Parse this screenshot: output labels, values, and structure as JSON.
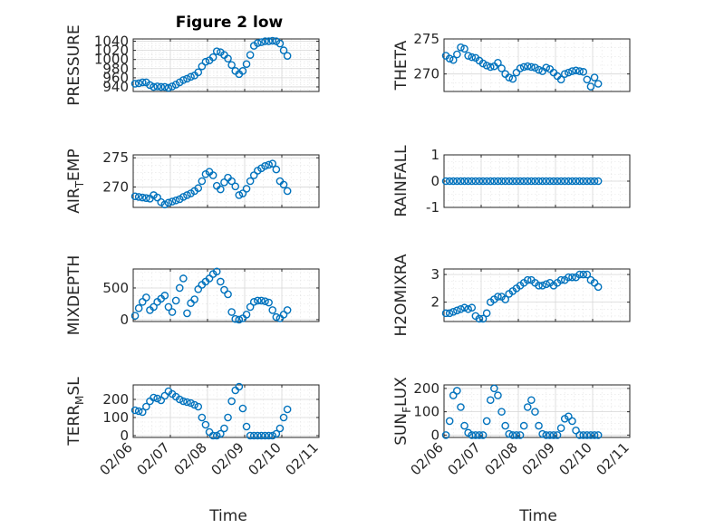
{
  "figure": {
    "title": "Figure 2 low",
    "xlabel_left": "Time",
    "xlabel_right": "Time",
    "x_ticks": [
      "02/06",
      "02/07",
      "02/08",
      "02/09",
      "02/10",
      "02/11"
    ],
    "marker_color": "#0072bd"
  },
  "chart_data": [
    {
      "type": "scatter",
      "name": "pressure",
      "ylabel": "PRESSURE",
      "title": "Figure 2 low",
      "xlim": [
        0,
        5
      ],
      "ylim": [
        930,
        1045
      ],
      "yticks": [
        940,
        960,
        980,
        1000,
        1020,
        1040
      ],
      "x": [
        0.05,
        0.15,
        0.25,
        0.35,
        0.45,
        0.55,
        0.65,
        0.75,
        0.85,
        0.95,
        1.05,
        1.15,
        1.25,
        1.35,
        1.45,
        1.55,
        1.65,
        1.75,
        1.85,
        1.95,
        2.05,
        2.15,
        2.25,
        2.35,
        2.45,
        2.55,
        2.65,
        2.75,
        2.85,
        2.95,
        3.05,
        3.15,
        3.25,
        3.35,
        3.45,
        3.55,
        3.65,
        3.75,
        3.85,
        3.95,
        4.05,
        4.15
      ],
      "y": [
        947,
        948,
        950,
        950,
        944,
        940,
        941,
        940,
        940,
        938,
        941,
        945,
        950,
        955,
        958,
        962,
        965,
        972,
        985,
        995,
        998,
        1005,
        1018,
        1016,
        1010,
        1002,
        988,
        975,
        968,
        975,
        990,
        1010,
        1030,
        1036,
        1038,
        1040,
        1040,
        1041,
        1040,
        1035,
        1020,
        1008
      ]
    },
    {
      "type": "scatter",
      "name": "theta",
      "ylabel": "THETA",
      "xlim": [
        0,
        5
      ],
      "ylim": [
        267.5,
        275
      ],
      "yticks": [
        270,
        275
      ],
      "x": [
        0.05,
        0.15,
        0.25,
        0.35,
        0.45,
        0.55,
        0.65,
        0.75,
        0.85,
        0.95,
        1.05,
        1.15,
        1.25,
        1.35,
        1.45,
        1.55,
        1.65,
        1.75,
        1.85,
        1.95,
        2.05,
        2.15,
        2.25,
        2.35,
        2.45,
        2.55,
        2.65,
        2.75,
        2.85,
        2.95,
        3.05,
        3.15,
        3.25,
        3.35,
        3.45,
        3.55,
        3.65,
        3.75,
        3.85,
        3.95,
        4.05,
        4.15
      ],
      "y": [
        272.6,
        272.2,
        272.0,
        272.8,
        273.8,
        273.6,
        272.6,
        272.4,
        272.3,
        271.9,
        271.5,
        271.2,
        271.0,
        271.1,
        271.6,
        270.8,
        270.0,
        269.5,
        269.3,
        270.2,
        270.8,
        271.0,
        271.1,
        271.0,
        270.9,
        270.6,
        270.4,
        270.9,
        270.7,
        270.2,
        269.7,
        269.2,
        270.0,
        270.2,
        270.4,
        270.5,
        270.4,
        270.3,
        269.2,
        268.2,
        269.5,
        268.6
      ]
    },
    {
      "type": "scatter",
      "name": "air_temp",
      "ylabel": "AIR_TEMP",
      "xlim": [
        0,
        5
      ],
      "ylim": [
        266.5,
        275.5
      ],
      "yticks": [
        270,
        275
      ],
      "x": [
        0.05,
        0.15,
        0.25,
        0.35,
        0.45,
        0.55,
        0.65,
        0.75,
        0.85,
        0.95,
        1.05,
        1.15,
        1.25,
        1.35,
        1.45,
        1.55,
        1.65,
        1.75,
        1.85,
        1.95,
        2.05,
        2.15,
        2.25,
        2.35,
        2.45,
        2.55,
        2.65,
        2.75,
        2.85,
        2.95,
        3.05,
        3.15,
        3.25,
        3.35,
        3.45,
        3.55,
        3.65,
        3.75,
        3.85,
        3.95,
        4.05,
        4.15
      ],
      "y": [
        268.4,
        268.3,
        268.2,
        268.1,
        268.0,
        268.6,
        268.2,
        267.4,
        267.0,
        267.3,
        267.5,
        267.7,
        267.9,
        268.3,
        268.6,
        268.9,
        269.3,
        269.8,
        271.0,
        272.2,
        272.6,
        272.0,
        270.2,
        269.6,
        270.8,
        271.6,
        271.0,
        270.1,
        268.6,
        268.9,
        269.7,
        271.0,
        272.0,
        272.8,
        273.2,
        273.6,
        273.8,
        274.0,
        273.0,
        271.0,
        270.4,
        269.3
      ]
    },
    {
      "type": "scatter",
      "name": "rainfall",
      "ylabel": "RAINFALL",
      "xlim": [
        0,
        5
      ],
      "ylim": [
        -1,
        1
      ],
      "yticks": [
        -1,
        0,
        1
      ],
      "x": [
        0.05,
        0.15,
        0.25,
        0.35,
        0.45,
        0.55,
        0.65,
        0.75,
        0.85,
        0.95,
        1.05,
        1.15,
        1.25,
        1.35,
        1.45,
        1.55,
        1.65,
        1.75,
        1.85,
        1.95,
        2.05,
        2.15,
        2.25,
        2.35,
        2.45,
        2.55,
        2.65,
        2.75,
        2.85,
        2.95,
        3.05,
        3.15,
        3.25,
        3.35,
        3.45,
        3.55,
        3.65,
        3.75,
        3.85,
        3.95,
        4.05,
        4.15
      ],
      "y": [
        0,
        0,
        0,
        0,
        0,
        0,
        0,
        0,
        0,
        0,
        0,
        0,
        0,
        0,
        0,
        0,
        0,
        0,
        0,
        0,
        0,
        0,
        0,
        0,
        0,
        0,
        0,
        0,
        0,
        0,
        0,
        0,
        0,
        0,
        0,
        0,
        0,
        0,
        0,
        0,
        0,
        0
      ]
    },
    {
      "type": "scatter",
      "name": "mixdepth",
      "ylabel": "MIXDEPTH",
      "xlim": [
        0,
        5
      ],
      "ylim": [
        -30,
        800
      ],
      "yticks": [
        0,
        500
      ],
      "x": [
        0.05,
        0.15,
        0.25,
        0.35,
        0.45,
        0.55,
        0.65,
        0.75,
        0.85,
        0.95,
        1.05,
        1.15,
        1.25,
        1.35,
        1.45,
        1.55,
        1.65,
        1.75,
        1.85,
        1.95,
        2.05,
        2.15,
        2.25,
        2.35,
        2.45,
        2.55,
        2.65,
        2.75,
        2.85,
        2.95,
        3.05,
        3.15,
        3.25,
        3.35,
        3.45,
        3.55,
        3.65,
        3.75,
        3.85,
        3.95,
        4.05,
        4.15
      ],
      "y": [
        60,
        180,
        280,
        350,
        150,
        200,
        280,
        330,
        380,
        200,
        120,
        300,
        500,
        650,
        100,
        260,
        320,
        480,
        550,
        600,
        650,
        720,
        760,
        600,
        470,
        400,
        120,
        10,
        0,
        20,
        80,
        200,
        280,
        300,
        300,
        290,
        270,
        150,
        40,
        20,
        80,
        150
      ]
    },
    {
      "type": "scatter",
      "name": "h2omixra",
      "ylabel": "H2OMIXRA",
      "xlim": [
        0,
        5
      ],
      "ylim": [
        1.3,
        3.2
      ],
      "yticks": [
        2,
        3
      ],
      "x": [
        0.05,
        0.15,
        0.25,
        0.35,
        0.45,
        0.55,
        0.65,
        0.75,
        0.85,
        0.95,
        1.05,
        1.15,
        1.25,
        1.35,
        1.45,
        1.55,
        1.65,
        1.75,
        1.85,
        1.95,
        2.05,
        2.15,
        2.25,
        2.35,
        2.45,
        2.55,
        2.65,
        2.75,
        2.85,
        2.95,
        3.05,
        3.15,
        3.25,
        3.35,
        3.45,
        3.55,
        3.65,
        3.75,
        3.85,
        3.95,
        4.05,
        4.15
      ],
      "y": [
        1.6,
        1.6,
        1.65,
        1.7,
        1.75,
        1.8,
        1.75,
        1.8,
        1.5,
        1.4,
        1.4,
        1.6,
        2.0,
        2.1,
        2.2,
        2.2,
        2.1,
        2.3,
        2.4,
        2.5,
        2.6,
        2.7,
        2.8,
        2.8,
        2.7,
        2.6,
        2.6,
        2.65,
        2.7,
        2.6,
        2.7,
        2.8,
        2.8,
        2.9,
        2.9,
        2.9,
        3.0,
        3.0,
        3.0,
        2.8,
        2.7,
        2.55
      ]
    },
    {
      "type": "scatter",
      "name": "terr_msl",
      "ylabel": "TERR_MSL",
      "xlim": [
        0,
        5
      ],
      "ylim": [
        -10,
        280
      ],
      "yticks": [
        0,
        100,
        200
      ],
      "x": [
        0.05,
        0.15,
        0.25,
        0.35,
        0.45,
        0.55,
        0.65,
        0.75,
        0.85,
        0.95,
        1.05,
        1.15,
        1.25,
        1.35,
        1.45,
        1.55,
        1.65,
        1.75,
        1.85,
        1.95,
        2.05,
        2.15,
        2.25,
        2.35,
        2.45,
        2.55,
        2.65,
        2.75,
        2.85,
        2.95,
        3.05,
        3.15,
        3.25,
        3.35,
        3.45,
        3.55,
        3.65,
        3.75,
        3.85,
        3.95,
        4.05,
        4.15
      ],
      "y": [
        140,
        135,
        130,
        160,
        190,
        210,
        205,
        195,
        220,
        245,
        230,
        215,
        200,
        190,
        185,
        180,
        170,
        160,
        100,
        60,
        20,
        0,
        0,
        10,
        40,
        100,
        190,
        250,
        270,
        150,
        50,
        0,
        0,
        0,
        0,
        0,
        0,
        0,
        10,
        40,
        100,
        145
      ]
    },
    {
      "type": "scatter",
      "name": "sun_flux",
      "ylabel": "SUN_FLUX",
      "xlim": [
        0,
        5
      ],
      "ylim": [
        -10,
        215
      ],
      "yticks": [
        0,
        100,
        200
      ],
      "x": [
        0.05,
        0.15,
        0.25,
        0.35,
        0.45,
        0.55,
        0.65,
        0.75,
        0.85,
        0.95,
        1.05,
        1.15,
        1.25,
        1.35,
        1.45,
        1.55,
        1.65,
        1.75,
        1.85,
        1.95,
        2.05,
        2.15,
        2.25,
        2.35,
        2.45,
        2.55,
        2.65,
        2.75,
        2.85,
        2.95,
        3.05,
        3.15,
        3.25,
        3.35,
        3.45,
        3.55,
        3.65,
        3.75,
        3.85,
        3.95,
        4.05,
        4.15
      ],
      "y": [
        0,
        60,
        170,
        190,
        120,
        40,
        10,
        0,
        0,
        0,
        0,
        60,
        150,
        200,
        170,
        100,
        40,
        5,
        0,
        0,
        0,
        40,
        120,
        150,
        100,
        40,
        5,
        0,
        0,
        0,
        0,
        30,
        70,
        80,
        60,
        20,
        0,
        0,
        0,
        0,
        0,
        0
      ]
    }
  ]
}
